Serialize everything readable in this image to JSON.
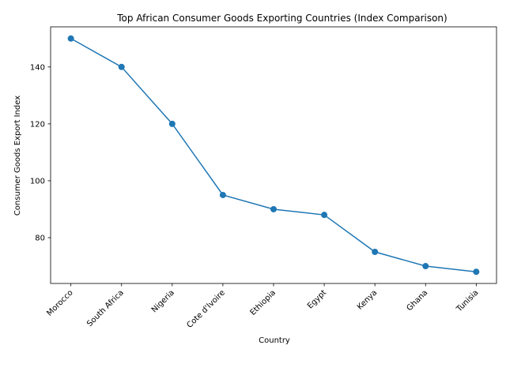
{
  "chart_data": {
    "type": "line",
    "title": "Top African Consumer Goods Exporting Countries (Index Comparison)",
    "xlabel": "Country",
    "ylabel": "Consumer Goods Export Index",
    "categories": [
      "Morocco",
      "South Africa",
      "Nigeria",
      "Cote d'Ivoire",
      "Ethiopia",
      "Egypt",
      "Kenya",
      "Ghana",
      "Tunisia"
    ],
    "values": [
      150,
      140,
      120,
      95,
      90,
      88,
      75,
      70,
      68
    ],
    "yticks": [
      80,
      100,
      120,
      140
    ],
    "ylim": [
      63.9,
      154.1
    ],
    "grid": false,
    "marker": "circle",
    "color": "#1f77b4"
  }
}
